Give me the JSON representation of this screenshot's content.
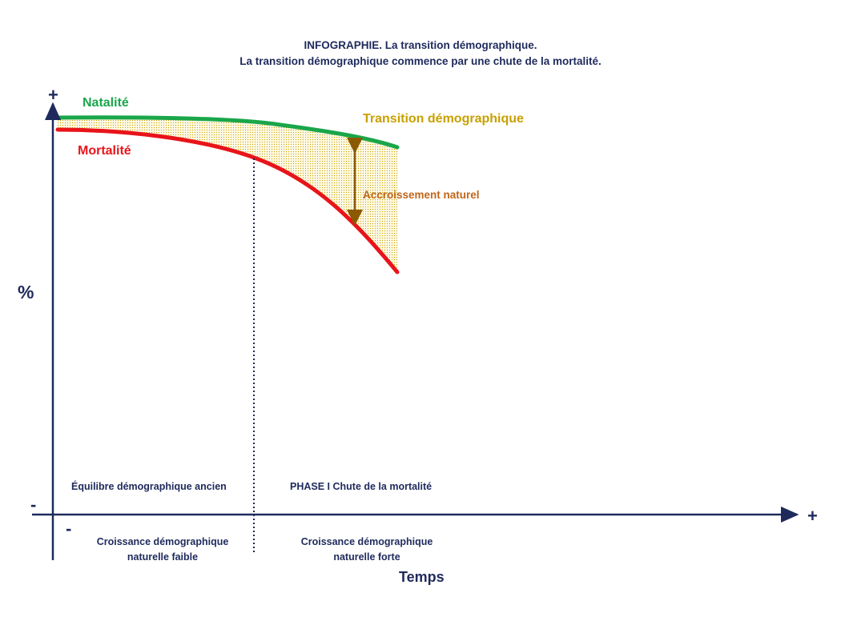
{
  "title": {
    "line1": "INFOGRAPHIE. La transition démographique.",
    "line2": "La transition démographique commence par une chute de la mortalité."
  },
  "axes": {
    "y_label": "%",
    "y_plus": "+",
    "y_minus": "-",
    "x_label": "Temps",
    "x_plus": "+",
    "x_minus": "-"
  },
  "curves": {
    "natalite": {
      "label": "Natalité",
      "color": "#1aa64a"
    },
    "mortalite": {
      "label": "Mortalité",
      "color": "#e8141a"
    }
  },
  "annotations": {
    "transition": {
      "label": "Transition démographique",
      "color": "#c8a000"
    },
    "accroissement": {
      "label": "Accroissement naturel",
      "color": "#c0661a"
    }
  },
  "phases": {
    "phase0": {
      "title": "Équilibre démographique ancien",
      "growth_line1": "Croissance démographique",
      "growth_line2": "naturelle faible"
    },
    "phase1": {
      "title": "PHASE I Chute de la mortalité",
      "growth_line1": "Croissance démographique",
      "growth_line2": "naturelle forte"
    }
  },
  "colors": {
    "axis": "#1f2a5c",
    "text": "#1f2a5c",
    "fill_dots": "#c8a000",
    "fill_bg": "#fdf8e0",
    "arrow": "#8b5a00"
  }
}
